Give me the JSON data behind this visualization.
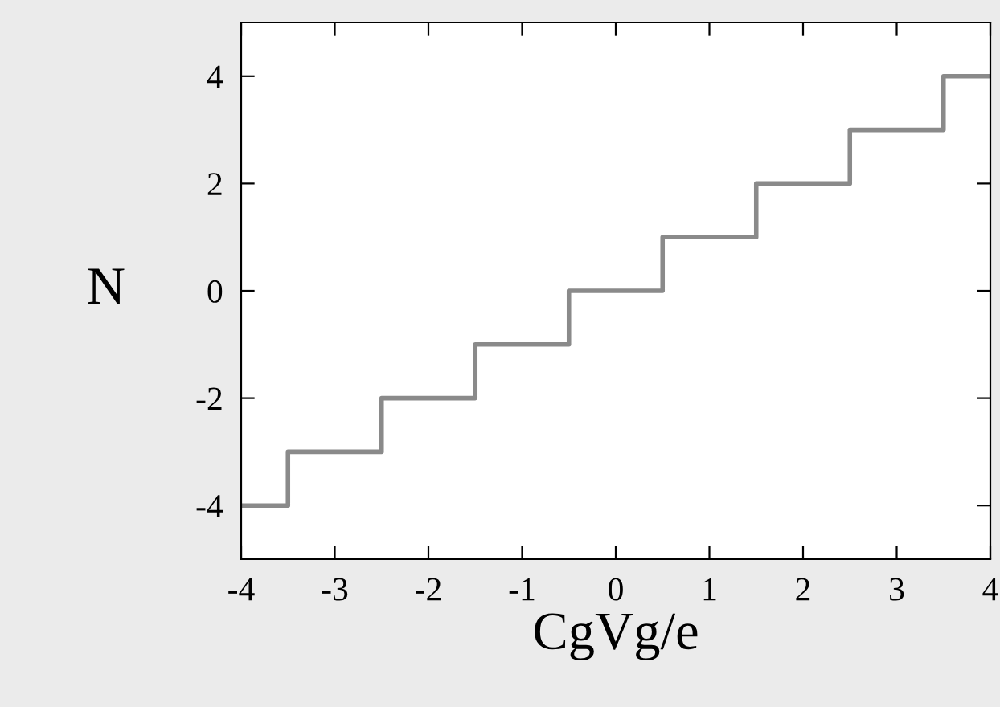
{
  "chart_data": {
    "type": "step",
    "xlabel": "CgVg/e",
    "ylabel": "N",
    "series": [
      {
        "color": "#8a8a8a",
        "x": [
          -4,
          -3.5,
          -2.5,
          -1.5,
          -0.5,
          0.5,
          1.5,
          2.5,
          3.5,
          4
        ],
        "values": [
          -4,
          -3,
          -2,
          -1,
          0,
          1,
          2,
          3,
          4,
          4
        ]
      }
    ],
    "xlim": [
      -4,
      4
    ],
    "ylim": [
      -5,
      5
    ],
    "xticks": [
      -4,
      -3,
      -2,
      -1,
      0,
      1,
      2,
      3,
      4
    ],
    "yticks": [
      -4,
      -2,
      0,
      2,
      4
    ],
    "grid": false,
    "legend": false
  }
}
